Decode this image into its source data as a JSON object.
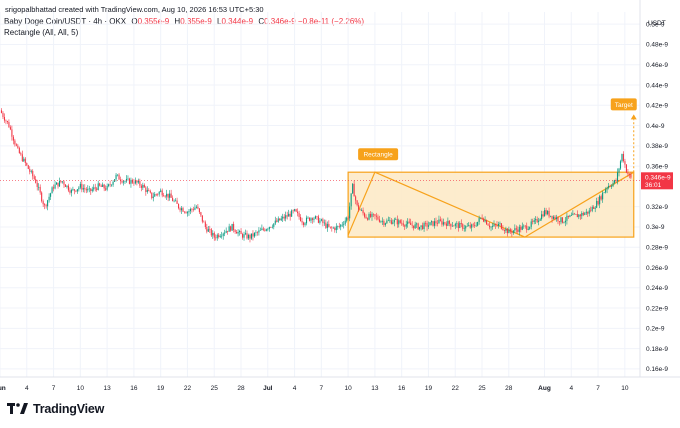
{
  "header": {
    "credit": "srigopalbhattad created with TradingView.com, Aug 10, 2026 16:53 UTC+5:30",
    "symbol": "Baby Doge Coin/USDT · 4h · OKX",
    "ohlc": [
      {
        "label": "O",
        "value": "0.355e-9"
      },
      {
        "label": "H",
        "value": "0.355e-9"
      },
      {
        "label": "L",
        "value": "0.344e-9"
      },
      {
        "label": "C",
        "value": "0.346e-9"
      }
    ],
    "change": "−0.8e-11 (−2.26%)",
    "indicator": "Rectangle (All, All, 5)"
  },
  "currency": "USDT",
  "price_tag": {
    "value": "0.346e-9",
    "countdown": "36:01"
  },
  "logo": {
    "text": "TradingView"
  },
  "colors": {
    "up": "#089981",
    "down": "#f23645",
    "accent": "#f7a21b",
    "box_fill": "#fde9c4"
  },
  "chart_data": {
    "type": "candlestick",
    "y_unit": "e-9",
    "ylim": [
      0.152,
      0.512
    ],
    "yticks": [
      {
        "value": 0.16,
        "label": "0.16e-9"
      },
      {
        "value": 0.18,
        "label": "0.18e-9"
      },
      {
        "value": 0.2,
        "label": "0.2e-9"
      },
      {
        "value": 0.22,
        "label": "0.22e-9"
      },
      {
        "value": 0.24,
        "label": "0.24e-9"
      },
      {
        "value": 0.26,
        "label": "0.26e-9"
      },
      {
        "value": 0.28,
        "label": "0.28e-9"
      },
      {
        "value": 0.3,
        "label": "0.3e-9"
      },
      {
        "value": 0.32,
        "label": "0.32e-9"
      },
      {
        "value": 0.36,
        "label": "0.36e-9"
      },
      {
        "value": 0.38,
        "label": "0.38e-9"
      },
      {
        "value": 0.4,
        "label": "0.4e-9"
      },
      {
        "value": 0.42,
        "label": "0.42e-9"
      },
      {
        "value": 0.44,
        "label": "0.44e-9"
      },
      {
        "value": 0.46,
        "label": "0.46e-9"
      },
      {
        "value": 0.48,
        "label": "0.48e-9"
      },
      {
        "value": 0.5,
        "label": "0.5e-9"
      }
    ],
    "xticks": [
      {
        "day": 1,
        "label": "Jun"
      },
      {
        "day": 4,
        "label": "4"
      },
      {
        "day": 7,
        "label": "7"
      },
      {
        "day": 10,
        "label": "10"
      },
      {
        "day": 13,
        "label": "13"
      },
      {
        "day": 16,
        "label": "16"
      },
      {
        "day": 19,
        "label": "19"
      },
      {
        "day": 22,
        "label": "22"
      },
      {
        "day": 25,
        "label": "25"
      },
      {
        "day": 28,
        "label": "28"
      },
      {
        "day": 31,
        "label": "Jul"
      },
      {
        "day": 34,
        "label": "4"
      },
      {
        "day": 37,
        "label": "7"
      },
      {
        "day": 40,
        "label": "10"
      },
      {
        "day": 43,
        "label": "13"
      },
      {
        "day": 46,
        "label": "16"
      },
      {
        "day": 49,
        "label": "19"
      },
      {
        "day": 52,
        "label": "22"
      },
      {
        "day": 55,
        "label": "25"
      },
      {
        "day": 58,
        "label": "28"
      },
      {
        "day": 62,
        "label": "Aug"
      },
      {
        "day": 65,
        "label": "4"
      },
      {
        "day": 68,
        "label": "7"
      },
      {
        "day": 71,
        "label": "10"
      }
    ],
    "xlim": [
      1,
      72.7
    ],
    "price_path": [
      [
        1,
        0.415
      ],
      [
        2,
        0.4
      ],
      [
        3,
        0.375
      ],
      [
        4,
        0.36
      ],
      [
        5,
        0.345
      ],
      [
        6,
        0.32
      ],
      [
        7,
        0.34
      ],
      [
        8,
        0.345
      ],
      [
        9,
        0.335
      ],
      [
        10,
        0.34
      ],
      [
        11,
        0.335
      ],
      [
        12,
        0.34
      ],
      [
        13,
        0.338
      ],
      [
        14,
        0.35
      ],
      [
        15,
        0.345
      ],
      [
        16,
        0.345
      ],
      [
        17,
        0.34
      ],
      [
        18,
        0.33
      ],
      [
        19,
        0.335
      ],
      [
        20,
        0.33
      ],
      [
        21,
        0.32
      ],
      [
        22,
        0.315
      ],
      [
        23,
        0.32
      ],
      [
        24,
        0.3
      ],
      [
        25,
        0.29
      ],
      [
        26,
        0.295
      ],
      [
        27,
        0.3
      ],
      [
        28,
        0.292
      ],
      [
        29,
        0.29
      ],
      [
        30,
        0.295
      ],
      [
        31,
        0.3
      ],
      [
        32,
        0.305
      ],
      [
        33,
        0.31
      ],
      [
        34,
        0.315
      ],
      [
        35,
        0.305
      ],
      [
        36,
        0.31
      ],
      [
        37,
        0.305
      ],
      [
        38,
        0.298
      ],
      [
        39,
        0.3
      ],
      [
        40,
        0.31
      ],
      [
        40.5,
        0.34
      ],
      [
        41,
        0.32
      ],
      [
        42,
        0.31
      ],
      [
        43,
        0.31
      ],
      [
        44,
        0.305
      ],
      [
        45,
        0.306
      ],
      [
        46,
        0.304
      ],
      [
        47,
        0.302
      ],
      [
        48,
        0.3
      ],
      [
        49,
        0.302
      ],
      [
        50,
        0.305
      ],
      [
        51,
        0.304
      ],
      [
        52,
        0.302
      ],
      [
        53,
        0.3
      ],
      [
        54,
        0.3
      ],
      [
        55,
        0.31
      ],
      [
        56,
        0.3
      ],
      [
        57,
        0.302
      ],
      [
        58,
        0.295
      ],
      [
        59,
        0.298
      ],
      [
        60,
        0.3
      ],
      [
        61,
        0.305
      ],
      [
        62,
        0.315
      ],
      [
        63,
        0.31
      ],
      [
        64,
        0.306
      ],
      [
        65,
        0.31
      ],
      [
        66,
        0.312
      ],
      [
        67,
        0.315
      ],
      [
        68,
        0.325
      ],
      [
        69,
        0.34
      ],
      [
        70,
        0.345
      ],
      [
        70.7,
        0.372
      ],
      [
        71.2,
        0.355
      ],
      [
        71.8,
        0.346
      ]
    ],
    "last_price": 0.346,
    "rectangle": {
      "x_start": 40.0,
      "x_end": 72.0,
      "y_top": 0.354,
      "y_bottom": 0.29,
      "label": "Rectangle",
      "zigzag": [
        [
          40.0,
          0.292
        ],
        [
          43.0,
          0.354
        ],
        [
          59.8,
          0.29
        ],
        [
          72.0,
          0.354
        ]
      ]
    },
    "target": {
      "label": "Target",
      "from": [
        72.0,
        0.354
      ],
      "to": [
        72.0,
        0.41
      ]
    }
  }
}
